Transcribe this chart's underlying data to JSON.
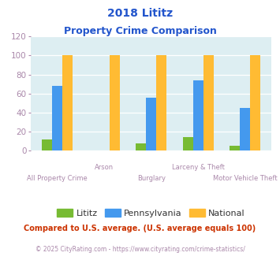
{
  "title_line1": "2018 Lititz",
  "title_line2": "Property Crime Comparison",
  "categories": [
    "All Property Crime",
    "Arson",
    "Burglary",
    "Larceny & Theft",
    "Motor Vehicle Theft"
  ],
  "lititz": [
    12,
    0,
    8,
    14,
    5
  ],
  "pennsylvania": [
    68,
    0,
    56,
    74,
    45
  ],
  "national": [
    100,
    100,
    100,
    100,
    100
  ],
  "color_lititz": "#77bb33",
  "color_pennsylvania": "#4499ee",
  "color_national": "#ffbb33",
  "ylim": [
    0,
    120
  ],
  "yticks": [
    0,
    20,
    40,
    60,
    80,
    100,
    120
  ],
  "footnote1": "Compared to U.S. average. (U.S. average equals 100)",
  "footnote2": "© 2025 CityRating.com - https://www.cityrating.com/crime-statistics/",
  "plot_bg": "#ddeef2",
  "title_color": "#2255cc",
  "tick_color": "#aa88aa",
  "footnote1_color": "#cc3300",
  "footnote2_color": "#aa88aa",
  "legend_label_color": "#333333",
  "legend_labels": [
    "Lititz",
    "Pennsylvania",
    "National"
  ],
  "bar_width": 0.22
}
